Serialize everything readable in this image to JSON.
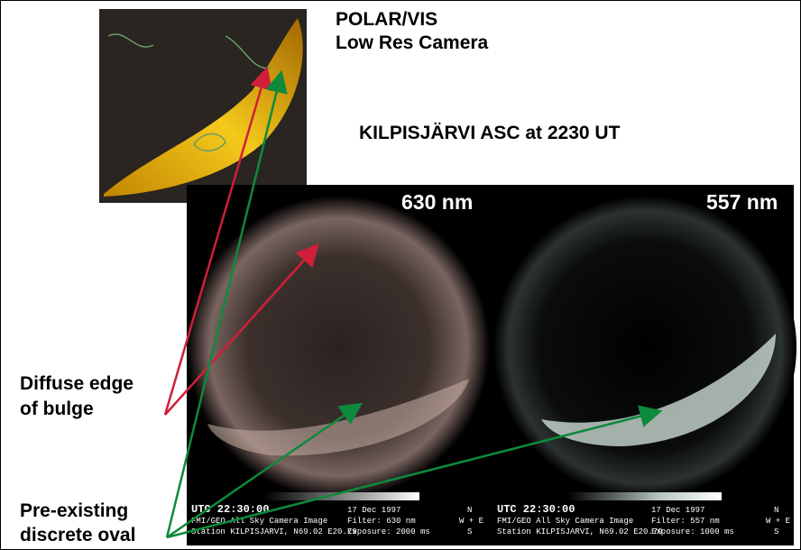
{
  "polar": {
    "lines": [
      "POLAR/VIS",
      "Low Res Camera"
    ]
  },
  "asc_title": "KILPISJÄRVI ASC at 2230 UT",
  "panels": [
    {
      "wavelength": "630 nm",
      "utc": "UTC 22:30:00",
      "date": "17 Dec 1997",
      "north": "N",
      "camera": "FMI/GEO All Sky Camera Image",
      "filter": "Filter: 630 nm",
      "we": "W + E",
      "station": "Station KILPISJARVI, N69.02 E20.79",
      "exposure": "Exposure: 2000 ms",
      "south": "S"
    },
    {
      "wavelength": "557 nm",
      "utc": "UTC 22:30:00",
      "date": "17 Dec 1997",
      "north": "N",
      "camera": "FMI/GEO All Sky Camera Image",
      "filter": "Filter: 557 nm",
      "we": "W + E",
      "station": "Station KILPISJARVI, N69.02 E20.79",
      "exposure": "Exposure: 1000 ms",
      "south": "S"
    }
  ],
  "annotations": [
    {
      "lines": [
        "Diffuse edge",
        "of bulge"
      ]
    },
    {
      "lines": [
        "Pre-existing",
        "discrete oval"
      ]
    }
  ]
}
